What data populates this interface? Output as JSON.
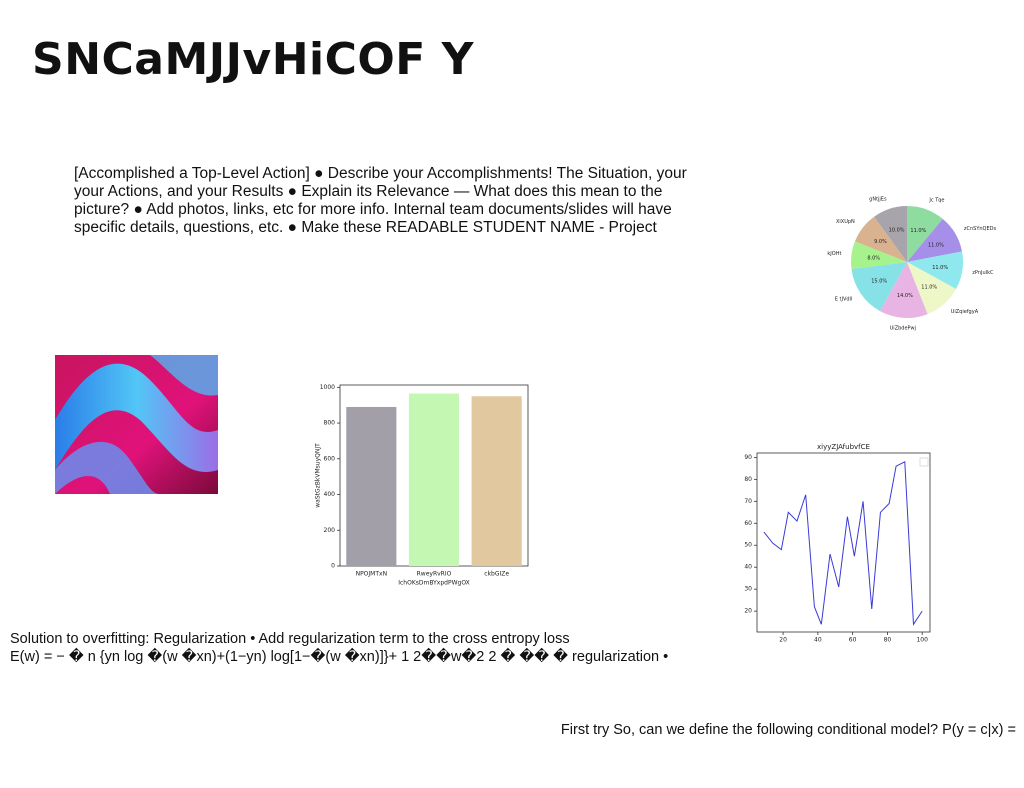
{
  "title": "SNCaMJJvHiCOF Y",
  "body_text": "[Accomplished a Top-Level Action] ● Describe your Accomplishments! The Situation, your your Actions, and your Results ● Explain its Relevance — What does this mean to the picture? ● Add photos, links, etc for more info. Internal team documents/slides will have specific details, questions, etc. ● Make these READABLE STUDENT NAME - Project",
  "solution_lines": [
    "Solution to overfitting: Regularization • Add regularization term to the cross entropy loss",
    "E(w) = − � n {yn log �(w �xn)+(1−yn) log[1−�(w �xn)]}+ 1 2��w�2 2 � �� � regularization •"
  ],
  "footer_text": "First try So, can we define the following conditional model? P(y = c|x) =",
  "chart_data": [
    {
      "type": "pie",
      "categories": [
        "Jc Tqe",
        "zCnSYnQEDs",
        "zPnJuIkC",
        "UiZqiefgyA",
        "UiZbdePwj",
        "E tJVdll",
        "kJOHt",
        "XiXUpN",
        "gNtjjEs"
      ],
      "values": [
        11,
        11,
        11,
        11,
        14,
        15,
        8,
        9,
        10
      ],
      "value_labels": [
        "11.0%",
        "11.0%",
        "11.0%",
        "11.0%",
        "14.0%",
        "15.0%",
        "8.0%",
        "9.0%",
        "10.0%"
      ],
      "colors": [
        "#8fdca1",
        "#a58fe8",
        "#8ee8ee",
        "#eef7c8",
        "#e8b4e4",
        "#86e2e6",
        "#a6f28c",
        "#d9b38f",
        "#a8a4ac"
      ]
    },
    {
      "type": "bar",
      "categories": [
        "NPOJMTxN",
        "RweyRvRIO",
        "ckbGIZe"
      ],
      "values": [
        890,
        965,
        950
      ],
      "colors": [
        "#a29fa9",
        "#c4f8b2",
        "#e2c89e"
      ],
      "x_label": "IchOKsDmBYxpdPWgOX",
      "y_label": "waStGzBkVMsuyQNJT",
      "ylim": [
        0,
        1013
      ],
      "yticks": [
        0,
        200,
        400,
        600,
        800,
        1000
      ]
    },
    {
      "type": "line",
      "title": "xiyyZJAfubvfCE",
      "color": "#3a3ad6",
      "x": [
        9,
        14,
        19,
        23,
        28,
        33,
        38,
        42,
        47,
        52,
        57,
        61,
        66,
        71,
        76,
        81,
        85,
        90,
        95,
        100
      ],
      "values": [
        56,
        51,
        48,
        65,
        61,
        73,
        22,
        14,
        46,
        31,
        63,
        45,
        70,
        21,
        65,
        69,
        86,
        88,
        14,
        20
      ],
      "xlim": [
        5,
        104.5
      ],
      "ylim": [
        10.5,
        92
      ],
      "xticks": [
        20,
        40,
        60,
        80,
        100
      ],
      "yticks": [
        20,
        30,
        40,
        50,
        60,
        70,
        80,
        90
      ]
    }
  ]
}
